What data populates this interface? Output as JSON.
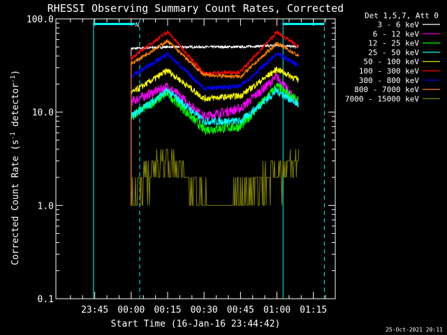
{
  "chart_data": {
    "type": "line",
    "title": "RHESSI Observing Summary Count Rates, Corrected",
    "xlabel": "Start Time (16-Jan-16 23:44:42)",
    "ylabel": "Corrected Count Rate (s⁻¹ detector⁻¹)",
    "ylabel_parts": {
      "main": "Corrected Count Rate (s",
      "sup1": "-1",
      "mid": " detector",
      "sup2": "-1",
      "end": ")"
    },
    "yscale": "log",
    "ylim": [
      0.1,
      100
    ],
    "xlim_minutes": [
      -16,
      99
    ],
    "x_ticks": [
      {
        "t": 0,
        "label": "23:45"
      },
      {
        "t": 15,
        "label": "00:00"
      },
      {
        "t": 30,
        "label": "00:15"
      },
      {
        "t": 45,
        "label": "00:30"
      },
      {
        "t": 60,
        "label": "00:45"
      },
      {
        "t": 75,
        "label": "01:00"
      },
      {
        "t": 90,
        "label": "01:15"
      }
    ],
    "y_ticks": [
      {
        "v": 0.1,
        "label": "0.1"
      },
      {
        "v": 1,
        "label": "1.0"
      },
      {
        "v": 10,
        "label": "10.0"
      },
      {
        "v": 100,
        "label": "100.0"
      }
    ],
    "legend_header": "Det 1,5,7, Att 0",
    "legend_position": "right",
    "timestamp": "25-Oct-2021 20:11",
    "series": [
      {
        "name": "3 - 6 keV",
        "color": "#ffffff",
        "times": [
          15,
          30,
          45,
          60,
          75,
          84
        ],
        "values": [
          48,
          50,
          50,
          50,
          52,
          50
        ]
      },
      {
        "name": "6 - 12 keV",
        "color": "#ff00ff",
        "times": [
          15,
          30,
          45,
          60,
          75,
          84
        ],
        "values": [
          13,
          19,
          9,
          11,
          24,
          12
        ]
      },
      {
        "name": "12 - 25 keV",
        "color": "#00ff00",
        "times": [
          15,
          30,
          45,
          60,
          75,
          84
        ],
        "values": [
          9,
          16,
          6.5,
          7,
          19,
          13
        ]
      },
      {
        "name": "25 - 50 keV",
        "color": "#00ffff",
        "times": [
          15,
          30,
          45,
          60,
          75,
          84
        ],
        "values": [
          9,
          17,
          8,
          8,
          17,
          12
        ]
      },
      {
        "name": "50 - 100 keV",
        "color": "#ffff00",
        "times": [
          15,
          30,
          45,
          60,
          75,
          84
        ],
        "values": [
          16,
          28,
          14,
          15,
          29,
          22
        ]
      },
      {
        "name": "100 - 300 keV",
        "color": "#ff0000",
        "times": [
          15,
          30,
          45,
          60,
          75,
          84
        ],
        "values": [
          38,
          73,
          26,
          27,
          72,
          50
        ]
      },
      {
        "name": "300 - 800 keV",
        "color": "#0000ff",
        "times": [
          15,
          30,
          45,
          60,
          75,
          84
        ],
        "values": [
          24,
          42,
          18,
          19,
          42,
          32
        ]
      },
      {
        "name": "800 - 7000 keV",
        "color": "#ff8000",
        "times": [
          15,
          30,
          45,
          60,
          75,
          84
        ],
        "values": [
          33,
          58,
          25,
          24,
          55,
          40
        ]
      },
      {
        "name": "7000 - 15000 keV",
        "color": "#808000",
        "times": [
          15,
          20,
          30,
          38,
          47,
          55,
          70,
          84
        ],
        "values": [
          1,
          2,
          3,
          2,
          1,
          1,
          2,
          3
        ]
      }
    ],
    "annotations": [
      {
        "type": "vline",
        "t": -0.5,
        "style": "solid",
        "color": "#00ffff"
      },
      {
        "type": "vline",
        "t": 18.5,
        "style": "dashed",
        "color": "#00ffff"
      },
      {
        "type": "vline",
        "t": 77.5,
        "style": "solid",
        "color": "#00ffff"
      },
      {
        "type": "vline",
        "t": 94.5,
        "style": "dashed",
        "color": "#00ffff"
      },
      {
        "type": "hbar",
        "t0": -0.5,
        "t1": 16.5,
        "value": 88,
        "color": "#00ffff"
      },
      {
        "type": "hbar",
        "t0": 77.5,
        "t1": 94.5,
        "value": 88,
        "color": "#00ffff"
      },
      {
        "type": "label",
        "t": 17.5,
        "value": 88,
        "text": "N",
        "color": "#00ffff"
      }
    ]
  }
}
